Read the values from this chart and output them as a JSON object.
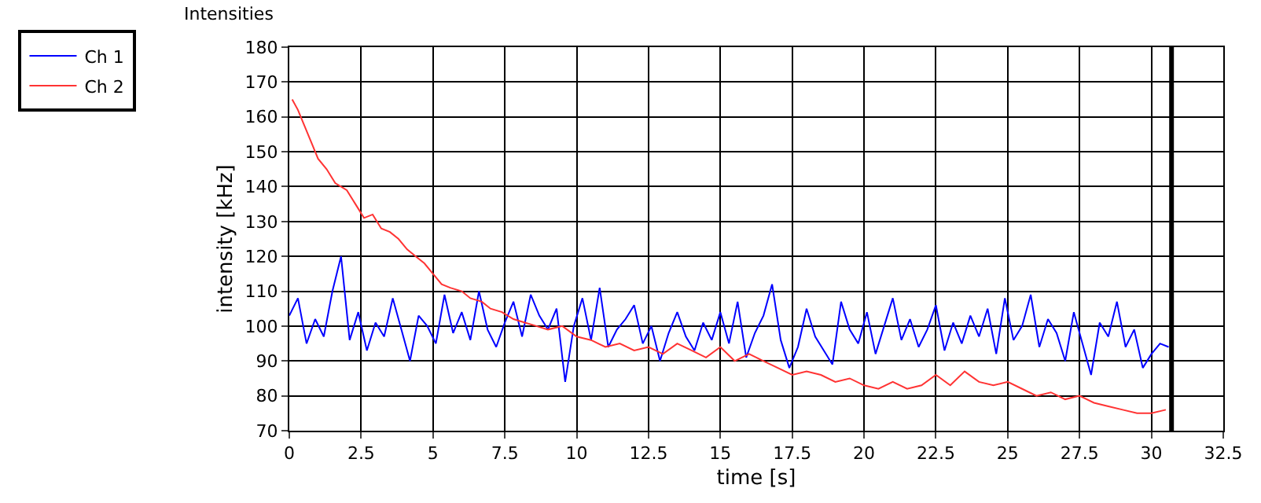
{
  "chart_data": {
    "type": "line",
    "title": "Intensities",
    "xlabel": "time [s]",
    "ylabel": "intensity [kHz]",
    "x": [
      0,
      0.3,
      0.6,
      0.9,
      1.2,
      1.5,
      1.8,
      2.1,
      2.4,
      2.7,
      3,
      3.3,
      3.6,
      3.9,
      4.2,
      4.5,
      4.8,
      5.1,
      5.4,
      5.7,
      6,
      6.3,
      6.6,
      6.9,
      7.2,
      7.5,
      7.8,
      8.1,
      8.4,
      8.7,
      9,
      9.3,
      9.6,
      9.9,
      10.2,
      10.5,
      10.8,
      11.1,
      11.4,
      11.7,
      12,
      12.3,
      12.6,
      12.9,
      13.2,
      13.5,
      13.8,
      14.1,
      14.4,
      14.7,
      15,
      15.3,
      15.6,
      15.9,
      16.2,
      16.5,
      16.8,
      17.1,
      17.4,
      17.7,
      18,
      18.3,
      18.6,
      18.9,
      19.2,
      19.5,
      19.8,
      20.1,
      20.4,
      20.7,
      21,
      21.3,
      21.6,
      21.9,
      22.2,
      22.5,
      22.8,
      23.1,
      23.4,
      23.7,
      24,
      24.3,
      24.6,
      24.9,
      25.2,
      25.5,
      25.8,
      26.1,
      26.4,
      26.7,
      27,
      27.3,
      27.6,
      27.9,
      28.2,
      28.5,
      28.8,
      29.1,
      29.4,
      29.7,
      30,
      30.3,
      30.6
    ],
    "series": [
      {
        "name": "Ch 1",
        "color": "#0000ff",
        "values": [
          103,
          108,
          95,
          102,
          97,
          110,
          120,
          96,
          104,
          93,
          101,
          97,
          108,
          99,
          90,
          103,
          100,
          95,
          109,
          98,
          104,
          96,
          110,
          99,
          94,
          101,
          107,
          97,
          109,
          103,
          99,
          105,
          84,
          100,
          108,
          96,
          111,
          94,
          99,
          102,
          106,
          95,
          100,
          90,
          98,
          104,
          97,
          93,
          101,
          96,
          104,
          95,
          107,
          91,
          98,
          103,
          112,
          96,
          88,
          94,
          105,
          97,
          93,
          89,
          107,
          99,
          95,
          104,
          92,
          100,
          108,
          96,
          102,
          94,
          99,
          106,
          93,
          101,
          95,
          103,
          97,
          105,
          92,
          108,
          96,
          100,
          109,
          94,
          102,
          98,
          90,
          104,
          95,
          86,
          101,
          97,
          107,
          94,
          99,
          88,
          92,
          95,
          94
        ]
      },
      {
        "name": "Ch 2",
        "color": "#ff3333",
        "x": [
          0.1,
          0.3,
          0.5,
          0.8,
          1.0,
          1.3,
          1.6,
          2.0,
          2.3,
          2.6,
          2.9,
          3.2,
          3.5,
          3.8,
          4.1,
          4.4,
          4.7,
          5.0,
          5.3,
          5.6,
          6.0,
          6.3,
          6.7,
          7.0,
          7.4,
          7.8,
          8.2,
          8.6,
          9.0,
          9.5,
          10,
          10.5,
          11,
          11.5,
          12,
          12.5,
          13,
          13.5,
          14,
          14.5,
          15,
          15.5,
          16,
          16.5,
          17,
          17.5,
          18,
          18.5,
          19,
          19.5,
          20,
          20.5,
          21,
          21.5,
          22,
          22.5,
          23,
          23.5,
          24,
          24.5,
          25,
          25.5,
          26,
          26.5,
          27,
          27.5,
          28,
          28.5,
          29,
          29.5,
          30,
          30.5
        ],
        "values": [
          165,
          162,
          158,
          152,
          148,
          145,
          141,
          139,
          135,
          131,
          132,
          128,
          127,
          125,
          122,
          120,
          118,
          115,
          112,
          111,
          110,
          108,
          107,
          105,
          104,
          102,
          101,
          100,
          99,
          100,
          97,
          96,
          94,
          95,
          93,
          94,
          92,
          95,
          93,
          91,
          94,
          90,
          92,
          90,
          88,
          86,
          87,
          86,
          84,
          85,
          83,
          82,
          84,
          82,
          83,
          86,
          83,
          87,
          84,
          83,
          84,
          82,
          80,
          81,
          79,
          80,
          78,
          77,
          76,
          75,
          75,
          76
        ]
      }
    ],
    "xlim": [
      0,
      32.5
    ],
    "xticks": [
      0,
      {
        "value": 2.5,
        "label": "2.5"
      },
      5,
      {
        "value": 7.5,
        "label": "7.5"
      },
      10,
      {
        "value": 12.5,
        "label": "12.5"
      },
      15,
      {
        "value": 17.5,
        "label": "17.5"
      },
      20,
      {
        "value": 22.5,
        "label": "22.5"
      },
      25,
      {
        "value": 27.5,
        "label": "27.5"
      },
      30,
      {
        "value": 32.5,
        "label": "32.5"
      }
    ],
    "ylim": [
      70,
      180
    ],
    "yticks": [
      70,
      80,
      90,
      100,
      110,
      120,
      130,
      140,
      150,
      160,
      170,
      180
    ],
    "ref_lines": [
      {
        "axis": "x",
        "value": 30.7,
        "color": "#000000"
      }
    ],
    "grid": true,
    "legend": "top left",
    "marker": "none",
    "line_style": "solid"
  }
}
